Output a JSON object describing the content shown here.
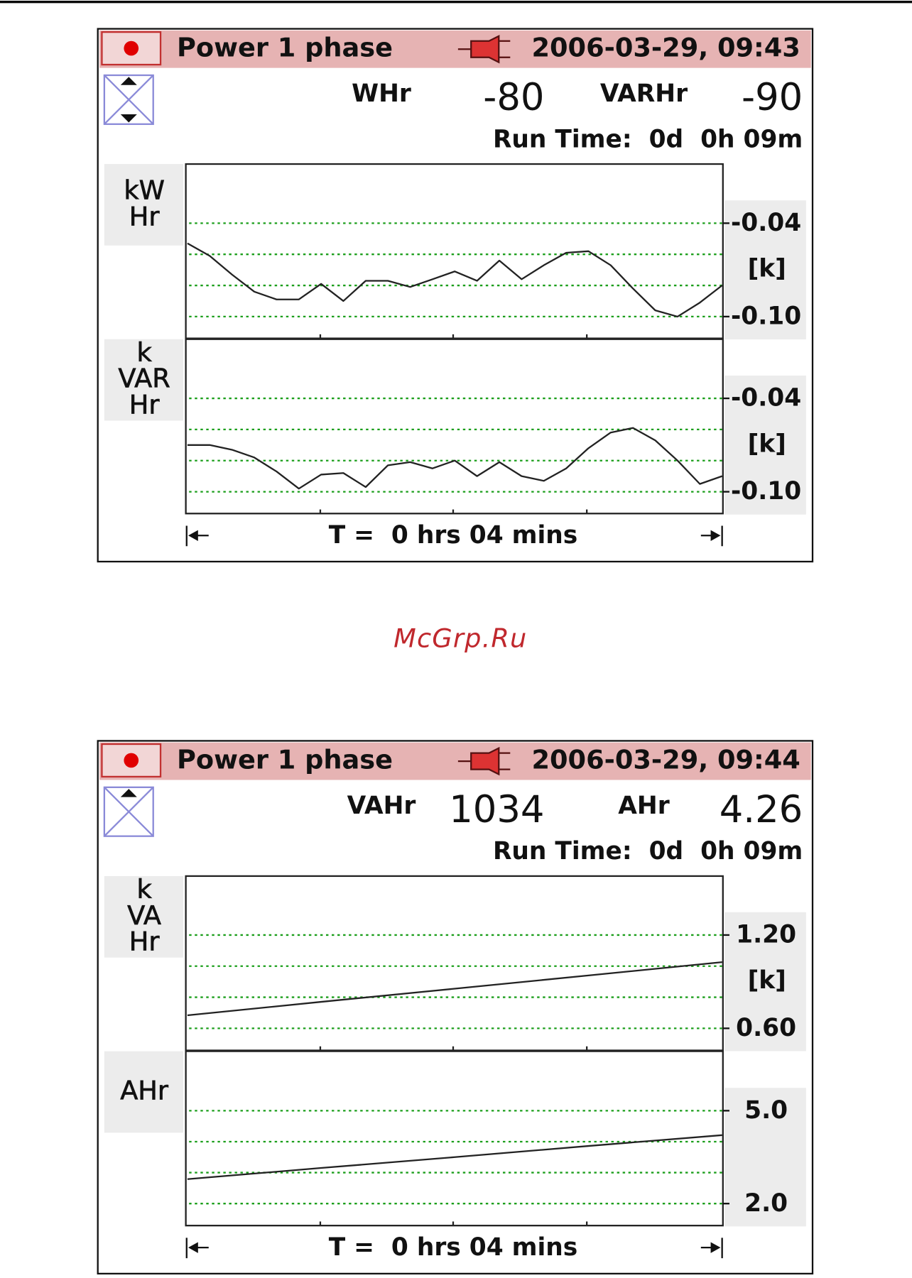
{
  "screens": [
    {
      "header": {
        "title": "Power 1 phase",
        "datetime": "2006-03-29, 09:43"
      },
      "readings": [
        {
          "label": "WHr",
          "value": "-80"
        },
        {
          "label": "VARHr",
          "value": "-90"
        }
      ],
      "run_time": "Run Time:  0d  0h 09m",
      "plots": [
        {
          "type": "line",
          "axis_label": [
            "kW",
            "Hr"
          ],
          "unit": "[k]",
          "ylim": [
            -0.114,
            -0.002
          ],
          "yticks": [
            -0.04,
            {
              "value": -0.06,
              "label": null
            },
            {
              "value": -0.08,
              "label": null
            },
            {
              "value": -0.1,
              "label": "-0.10"
            }
          ],
          "values": [
            -0.053,
            -0.061,
            -0.073,
            -0.084,
            -0.089,
            -0.089,
            -0.079,
            -0.09,
            -0.077,
            -0.077,
            -0.081,
            -0.076,
            -0.071,
            -0.077,
            -0.064,
            -0.076,
            -0.067,
            -0.059,
            -0.058,
            -0.067,
            -0.082,
            -0.096,
            -0.1,
            -0.091,
            -0.08
          ]
        },
        {
          "type": "line",
          "axis_label": [
            "k",
            "VAR",
            "Hr"
          ],
          "unit": "[k]",
          "ylim": [
            -0.114,
            -0.002
          ],
          "yticks": [
            -0.04,
            {
              "value": -0.06,
              "label": null
            },
            {
              "value": -0.08,
              "label": null
            },
            {
              "value": -0.1,
              "label": "-0.10"
            }
          ],
          "values": [
            -0.07,
            -0.07,
            -0.073,
            -0.078,
            -0.087,
            -0.098,
            -0.089,
            -0.088,
            -0.097,
            -0.083,
            -0.081,
            -0.085,
            -0.08,
            -0.09,
            -0.081,
            -0.09,
            -0.093,
            -0.085,
            -0.072,
            -0.062,
            -0.059,
            -0.067,
            -0.08,
            -0.095,
            -0.09
          ]
        }
      ],
      "time_span": "T =  0 hrs 04 mins"
    },
    {
      "header": {
        "title": "Power 1 phase",
        "datetime": "2006-03-29, 09:44"
      },
      "readings": [
        {
          "label": "VAHr",
          "value": "1034"
        },
        {
          "label": "AHr",
          "value": "4.26"
        }
      ],
      "run_time": "Run Time:  0d  0h 09m",
      "plots": [
        {
          "type": "line",
          "axis_label": [
            "k",
            "VA",
            "Hr"
          ],
          "unit": "[k]",
          "ylim": [
            0.458,
            1.579
          ],
          "yticks": [
            {
              "value": 1.2,
              "label": "1.20"
            },
            {
              "value": 1,
              "label": null
            },
            {
              "value": 0.8,
              "label": null
            },
            {
              "value": 0.6,
              "label": "0.60"
            }
          ],
          "values": [
            0.684,
            0.77,
            0.855,
            0.94,
            1.026
          ]
        },
        {
          "type": "line",
          "axis_label": [
            "AHr"
          ],
          "ylim": [
            1.29,
            6.92
          ],
          "yticks": [
            {
              "value": 5,
              "label": "5.0"
            },
            {
              "value": 4,
              "label": null
            },
            {
              "value": 3,
              "label": null
            },
            {
              "value": 2,
              "label": "2.0"
            }
          ],
          "values": [
            2.79,
            3.15,
            3.5,
            3.86,
            4.21
          ]
        }
      ],
      "time_span": "T =  0 hrs 04 mins"
    }
  ],
  "watermark": "McGrp.Ru"
}
